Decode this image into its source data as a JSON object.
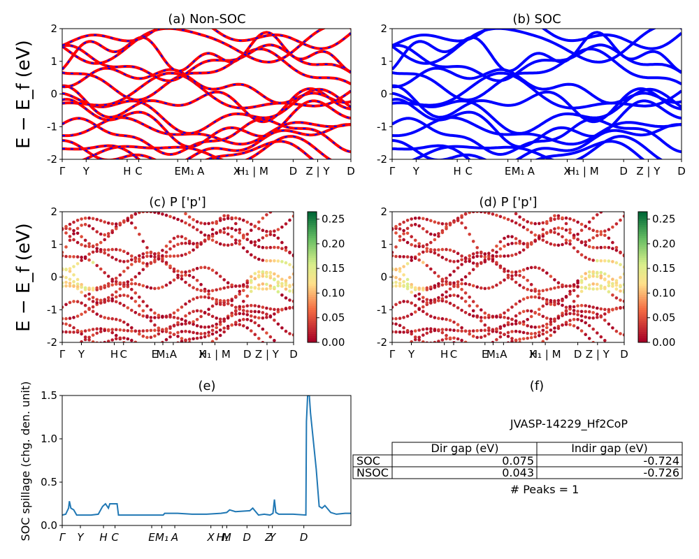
{
  "colors": {
    "nonsoc_primary": "#ff0000",
    "nonsoc_dash": "#0000ff",
    "soc_bands": "#0000ff",
    "spillage_line": "#1f77b4",
    "colormap": "RdYlGn"
  },
  "ylabel_bands": "E − E_f (eV)",
  "kpoint_labels": [
    "Γ",
    "Y",
    "H",
    "C",
    "E",
    "M₁",
    "A",
    "X",
    "H₁ | M",
    "D",
    "Z | Y",
    "D"
  ],
  "kpoint_labels_e": [
    "Γ",
    "Y",
    "H",
    "C",
    "E",
    "M₁",
    "A",
    "X",
    "H₁",
    "M",
    "D",
    "Z",
    "Y",
    "D"
  ],
  "colorbar_ticks": [
    "0.00",
    "0.05",
    "0.10",
    "0.15",
    "0.20",
    "0.25"
  ],
  "table": {
    "material": "JVASP-14229_Hf2CoP",
    "headers": [
      "",
      "Dir gap (eV)",
      "Indir gap (eV)"
    ],
    "rows": [
      {
        "label": "SOC",
        "dir": "0.075",
        "indir": "-0.724"
      },
      {
        "label": "NSOC",
        "dir": "0.043",
        "indir": "-0.726"
      }
    ],
    "peaks": "# Peaks = 1"
  },
  "chart_data": [
    {
      "panel": "a",
      "type": "line",
      "title": "(a) Non-SOC",
      "ylabel": "E − E_f (eV)",
      "ylim": [
        -2,
        2
      ],
      "yticks": [
        -2,
        -1,
        0,
        1,
        2
      ],
      "series": []
    },
    {
      "panel": "b",
      "type": "line",
      "title": "(b) SOC",
      "ylim": [
        -2,
        2
      ],
      "yticks": [
        -2,
        -1,
        0,
        1,
        2
      ],
      "series": []
    },
    {
      "panel": "c",
      "type": "scatter",
      "title": "(c)  P ['p']",
      "ylabel": "E − E_f (eV)",
      "ylim": [
        -2,
        2
      ],
      "yticks": [
        -2,
        -1,
        0,
        1,
        2
      ],
      "colorbar_range": [
        0,
        0.265
      ]
    },
    {
      "panel": "d",
      "type": "scatter",
      "title": "(d) P ['p']",
      "ylim": [
        -2,
        2
      ],
      "yticks": [
        -2,
        -1,
        0,
        1,
        2
      ],
      "colorbar_range": [
        0,
        0.265
      ]
    },
    {
      "panel": "e",
      "type": "line",
      "title": "(e)",
      "ylabel": "SOC spillage (chg. den. unit)",
      "ylim": [
        0,
        1.5
      ],
      "yticks": [
        "0.0",
        "0.5",
        "1.0",
        "1.5"
      ],
      "x": [
        0.0,
        0.012,
        0.022,
        0.025,
        0.03,
        0.04,
        0.05,
        0.1,
        0.125,
        0.14,
        0.15,
        0.16,
        0.165,
        0.175,
        0.19,
        0.195,
        0.2,
        0.25,
        0.3,
        0.35,
        0.355,
        0.4,
        0.45,
        0.5,
        0.55,
        0.57,
        0.58,
        0.6,
        0.65,
        0.66,
        0.68,
        0.7,
        0.7,
        0.72,
        0.73,
        0.735,
        0.74,
        0.75,
        0.8,
        0.844,
        0.846,
        0.85,
        0.856,
        0.86,
        0.88,
        0.89,
        0.9,
        0.91,
        0.93,
        0.95,
        0.98,
        1.0
      ],
      "y": [
        0.12,
        0.13,
        0.2,
        0.28,
        0.2,
        0.18,
        0.12,
        0.12,
        0.13,
        0.22,
        0.25,
        0.2,
        0.25,
        0.25,
        0.25,
        0.12,
        0.12,
        0.12,
        0.12,
        0.12,
        0.14,
        0.14,
        0.13,
        0.13,
        0.14,
        0.15,
        0.18,
        0.16,
        0.17,
        0.2,
        0.12,
        0.13,
        0.13,
        0.12,
        0.14,
        0.3,
        0.15,
        0.13,
        0.13,
        0.12,
        1.2,
        1.5,
        1.5,
        1.3,
        0.65,
        0.22,
        0.2,
        0.23,
        0.15,
        0.13,
        0.14,
        0.14
      ]
    },
    {
      "panel": "f",
      "type": "table",
      "title": "(f)"
    }
  ]
}
